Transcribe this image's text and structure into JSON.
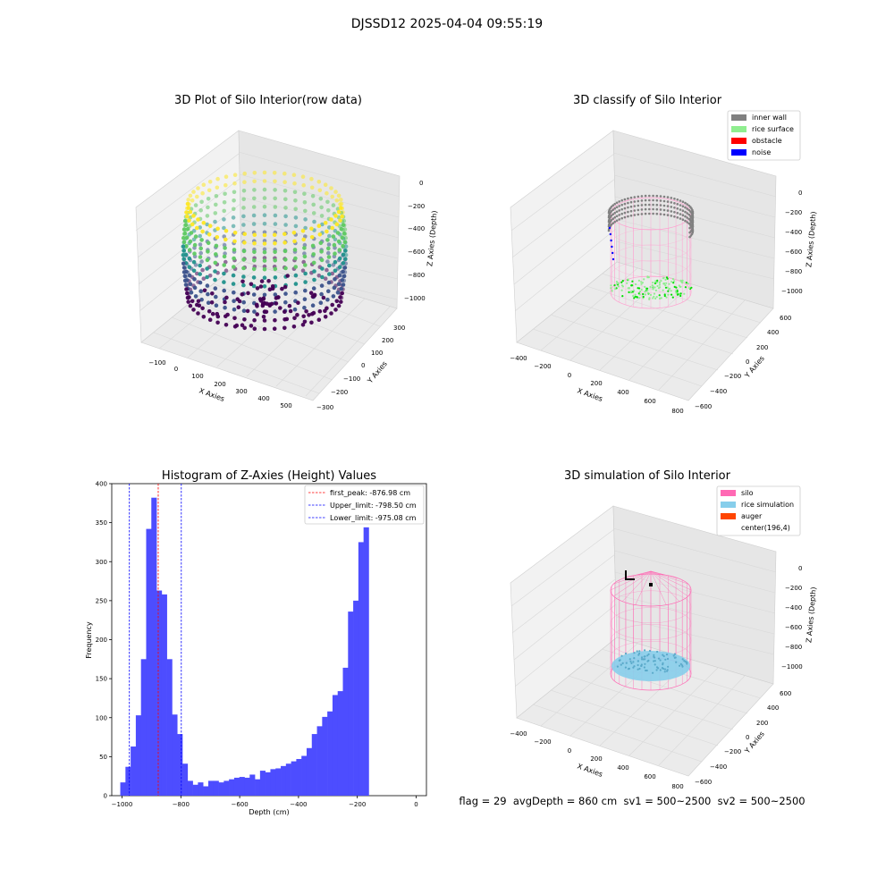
{
  "figure": {
    "suptitle": "DJSSD12 2025-04-04 09:55:19",
    "status_line": "flag = 29  avgDepth = 860 cm  sv1 = 500~2500  sv2 = 500~2500"
  },
  "panel_raw": {
    "title": "3D Plot of Silo Interior(row data)",
    "xlabel": "X Axies",
    "ylabel": "Y Axies",
    "zlabel": "Z Axies (Depth)",
    "xticks": [
      "−100",
      "0",
      "100",
      "200",
      "300",
      "400",
      "500"
    ],
    "yticks": [
      "300",
      "200",
      "100",
      "0",
      "−100",
      "−200",
      "−300"
    ],
    "zticks": [
      "0",
      "−200",
      "−400",
      "−600",
      "−800",
      "−1000"
    ],
    "colormap": [
      "#440154",
      "#3b528b",
      "#21918c",
      "#5ec962",
      "#fde725"
    ]
  },
  "panel_classify": {
    "title": "3D classify of Silo Interior",
    "xlabel": "X Axies",
    "ylabel": "Y Axies",
    "zlabel": "Z Axies (Depth)",
    "xticks": [
      "−400",
      "−200",
      "0",
      "200",
      "400",
      "600",
      "800"
    ],
    "yticks": [
      "600",
      "400",
      "200",
      "0",
      "−200",
      "−400",
      "−600"
    ],
    "zticks": [
      "0",
      "−200",
      "−400",
      "−600",
      "−800",
      "−1000"
    ],
    "legend": [
      {
        "label": "inner wall",
        "color": "#808080"
      },
      {
        "label": "rice surface",
        "color": "#90ee90"
      },
      {
        "label": "obstacle",
        "color": "#ff0000"
      },
      {
        "label": "noise",
        "color": "#0000ff"
      }
    ]
  },
  "panel_sim": {
    "title": "3D simulation of Silo Interior",
    "xlabel": "X Axies",
    "ylabel": "Y Axies",
    "zlabel": "Z Axies (Depth)",
    "xticks": [
      "−400",
      "−200",
      "0",
      "200",
      "400",
      "600",
      "800"
    ],
    "yticks": [
      "600",
      "400",
      "200",
      "0",
      "−200",
      "−400",
      "−600"
    ],
    "zticks": [
      "0",
      "−200",
      "−400",
      "−600",
      "−800",
      "−1000"
    ],
    "legend": [
      {
        "label": "silo",
        "color": "#ff69b4"
      },
      {
        "label": "rice simulation",
        "color": "#87ceeb"
      },
      {
        "label": "auger",
        "color": "#ff4500"
      },
      {
        "label": "center(196,4)",
        "color": "#ffffff"
      }
    ]
  },
  "chart_data": {
    "type": "bar",
    "title": "Histogram of Z-Axies (Height) Values",
    "xlabel": "Depth (cm)",
    "ylabel": "Frequency",
    "xlim": [
      -1035,
      35
    ],
    "ylim": [
      0,
      400
    ],
    "xticks": [
      -1000,
      -800,
      -600,
      -400,
      -200,
      0
    ],
    "yticks": [
      0,
      50,
      100,
      150,
      200,
      250,
      300,
      350,
      400
    ],
    "bin_start": -1006,
    "bin_width": 17.6,
    "bar_color": "#4d4dff",
    "values": [
      17,
      37,
      63,
      103,
      175,
      342,
      382,
      263,
      258,
      175,
      104,
      79,
      41,
      19,
      14,
      17,
      12,
      19,
      19,
      17,
      19,
      21,
      23,
      24,
      23,
      27,
      21,
      32,
      30,
      34,
      35,
      38,
      41,
      44,
      47,
      51,
      61,
      79,
      89,
      101,
      108,
      129,
      134,
      164,
      236,
      250,
      325,
      344
    ],
    "reference_lines": [
      {
        "label": "first_peak: -876.98 cm",
        "x": -876.98,
        "color": "#ff0000"
      },
      {
        "label": "Upper_limit: -798.50 cm",
        "x": -798.5,
        "color": "#0000ff"
      },
      {
        "label": "Lower_limit: -975.08 cm",
        "x": -975.08,
        "color": "#0000ff"
      }
    ]
  }
}
